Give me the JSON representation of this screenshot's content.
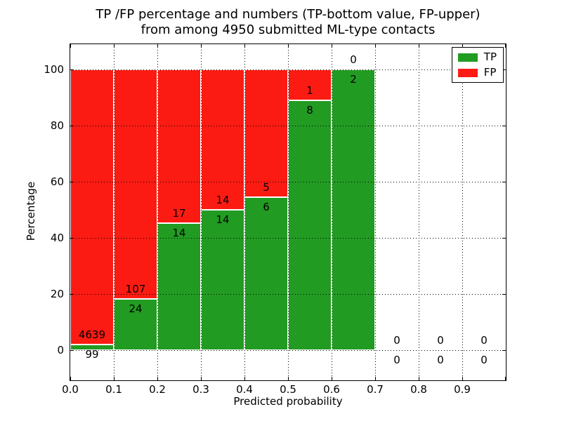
{
  "colors": {
    "text": "#000000",
    "background": "#ffffff",
    "grid": "#000000",
    "bar_edge": "#ffffff"
  },
  "chart_data": {
    "type": "bar",
    "stacked": true,
    "normalized": "percent",
    "title_line1": "TP /FP percentage and numbers (TP-bottom value, FP-upper)",
    "title_line2": "from among 4950 submitted ML-type contacts",
    "title": "TP /FP percentage and numbers (TP-bottom value, FP-upper) from among 4950 submitted ML-type contacts",
    "xlabel": "Predicted probability",
    "ylabel": "Percentage",
    "total_contacts": 4950,
    "xlim": [
      0.0,
      1.0
    ],
    "ylim": [
      0,
      100
    ],
    "grid": "dotted",
    "x_tick_labels": [
      "0.0",
      "0.1",
      "0.2",
      "0.3",
      "0.4",
      "0.5",
      "0.6",
      "0.7",
      "0.8",
      "0.9"
    ],
    "y_tick_values": [
      0,
      20,
      40,
      60,
      80,
      100
    ],
    "categories": [
      "0.0-0.1",
      "0.1-0.2",
      "0.2-0.3",
      "0.3-0.4",
      "0.4-0.5",
      "0.5-0.6",
      "0.6-0.7",
      "0.7-0.8",
      "0.8-0.9",
      "0.9-1.0"
    ],
    "series": [
      {
        "name": "TP",
        "color": "#229b22",
        "values": [
          99,
          24,
          14,
          14,
          6,
          8,
          2,
          0,
          0,
          0
        ]
      },
      {
        "name": "FP",
        "color": "#fb1b12",
        "values": [
          4639,
          107,
          17,
          14,
          5,
          1,
          0,
          0,
          0,
          0
        ]
      }
    ],
    "tp_percent_per_bin": [
      2.09,
      18.32,
      45.16,
      50.0,
      54.55,
      88.89,
      100.0,
      null,
      null,
      null
    ],
    "legend": {
      "position": "upper right"
    }
  }
}
